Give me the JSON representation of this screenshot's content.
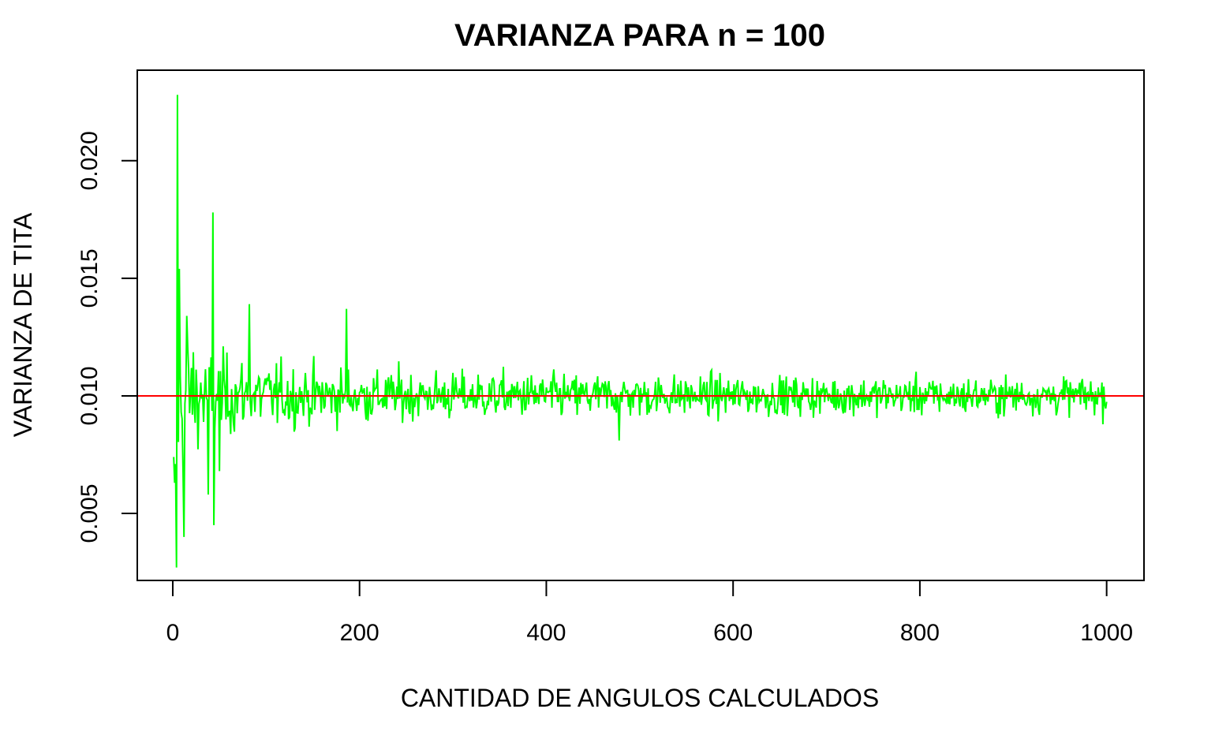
{
  "chart_data": {
    "type": "line",
    "title": "VARIANZA PARA n =  100",
    "xlabel": "CANTIDAD DE ANGULOS CALCULADOS",
    "ylabel": "VARIANZA DE TITA",
    "xlim": [
      -38,
      1040
    ],
    "ylim": [
      0.00215,
      0.02385
    ],
    "x_ticks": [
      0,
      200,
      400,
      600,
      800,
      1000
    ],
    "x_tick_labels": [
      "0",
      "200",
      "400",
      "600",
      "800",
      "1000"
    ],
    "y_ticks": [
      0.005,
      0.01,
      0.015,
      0.02
    ],
    "y_tick_labels": [
      "0.005",
      "0.010",
      "0.015",
      "0.020"
    ],
    "grid": false,
    "legend": "none",
    "series": [
      {
        "color": "#00ff00",
        "n_points": 1000,
        "description_values": {
          "mean": 0.01,
          "peaks": [
            [
              5,
              0.0228
            ],
            [
              4,
              0.0027
            ],
            [
              7,
              0.0154
            ],
            [
              12,
              0.004
            ],
            [
              15,
              0.0134
            ],
            [
              38,
              0.0058
            ],
            [
              43,
              0.0178
            ],
            [
              44,
              0.0045
            ],
            [
              50,
              0.0068
            ],
            [
              82,
              0.0139
            ],
            [
              186,
              0.0137
            ],
            [
              478,
              0.0081
            ]
          ]
        }
      }
    ],
    "reference_lines": [
      {
        "orientation": "horizontal",
        "value": 0.01,
        "color": "#ff0000"
      }
    ]
  }
}
